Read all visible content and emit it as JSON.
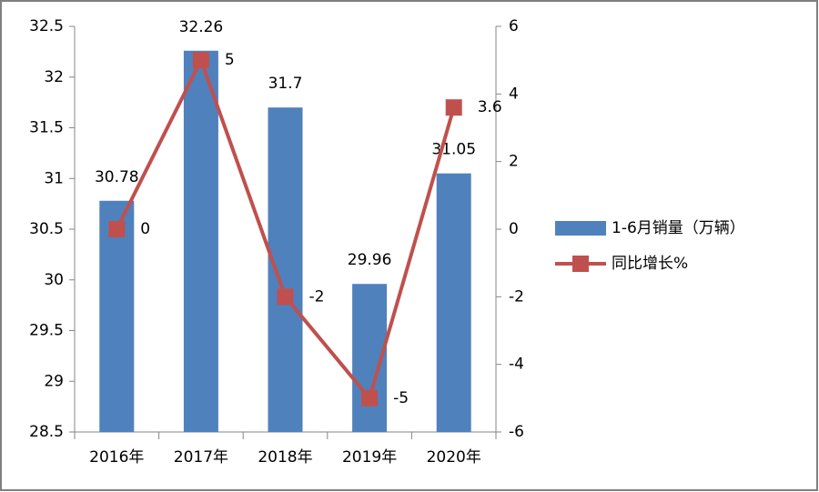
{
  "chart_data": {
    "type": "bar",
    "categories": [
      "2016年",
      "2017年",
      "2018年",
      "2019年",
      "2020年"
    ],
    "series": [
      {
        "name": "1-6月销量（万辆）",
        "color": "#4f81bd",
        "values": [
          30.78,
          32.26,
          31.7,
          29.96,
          31.05
        ]
      },
      {
        "name": "同比增长%",
        "color": "#c0504d",
        "type": "line",
        "axis": "y2",
        "values": [
          0,
          5,
          -2,
          -5,
          3.6
        ]
      }
    ],
    "ylim": [
      28.5,
      32.5
    ],
    "yticks": [
      28.5,
      29,
      29.5,
      30,
      30.5,
      31,
      31.5,
      32,
      32.5
    ],
    "y2lim": [
      -6,
      6
    ],
    "y2ticks": [
      -6,
      -4,
      -2,
      0,
      2,
      4,
      6
    ],
    "grid": false,
    "legend": "right"
  }
}
